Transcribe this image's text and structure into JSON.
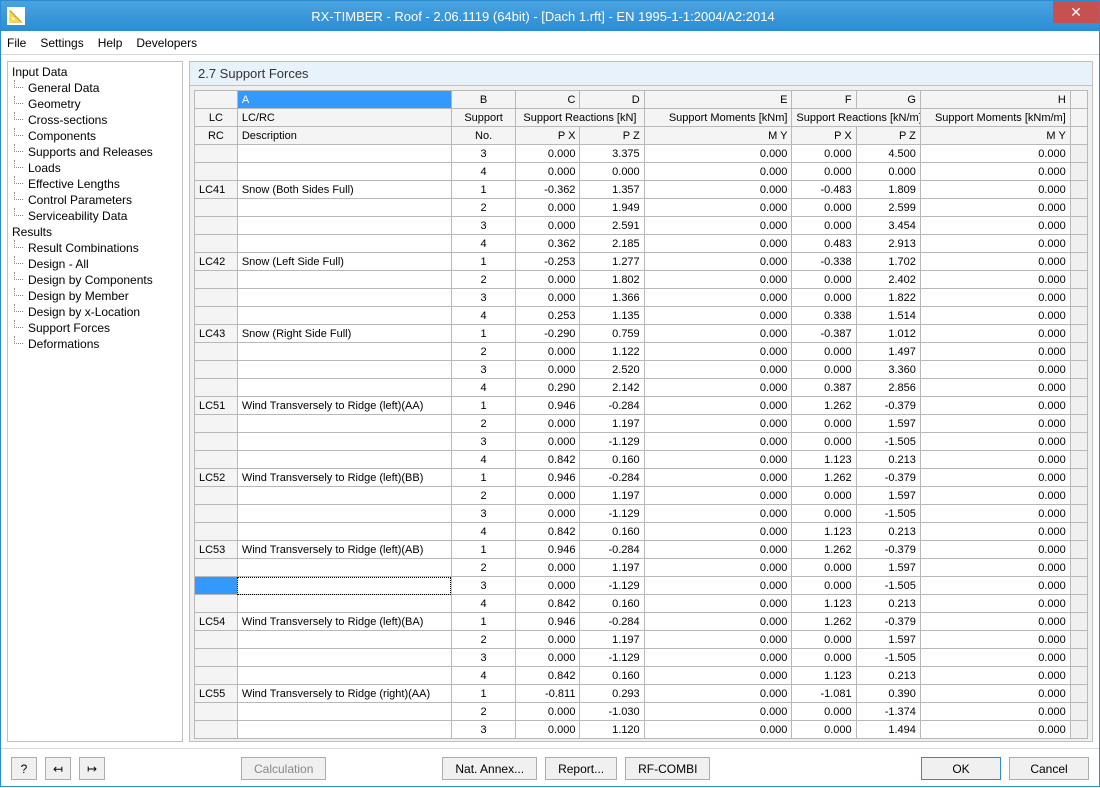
{
  "window": {
    "title": "RX-TIMBER - Roof - 2.06.1119 (64bit) - [Dach 1.rft] - EN 1995-1-1:2004/A2:2014",
    "close_glyph": "✕"
  },
  "menu": [
    "File",
    "Settings",
    "Help",
    "Developers"
  ],
  "sidebar": {
    "groups": [
      {
        "label": "Input Data",
        "items": [
          "General Data",
          "Geometry",
          "Cross-sections",
          "Components",
          "Supports and Releases",
          "Loads",
          "Effective Lengths",
          "Control Parameters",
          "Serviceability Data"
        ]
      },
      {
        "label": "Results",
        "items": [
          "Result Combinations",
          "Design - All",
          "Design by Components",
          "Design by Member",
          "Design by x-Location",
          "Support Forces",
          "Deformations"
        ]
      }
    ]
  },
  "section_title": "2.7 Support Forces",
  "table": {
    "col_letters": [
      "A",
      "B",
      "C",
      "D",
      "E",
      "F",
      "G",
      "H"
    ],
    "header1": {
      "lc": "LC",
      "a": "LC/RC",
      "b": "Support",
      "cd": "Support Reactions [kN]",
      "e": "Support Moments [kNm]",
      "fg": "Support Reactions [kN/m]",
      "h": "Support Moments [kNm/m]"
    },
    "header2": {
      "lc": "RC",
      "a": "Description",
      "b": "No.",
      "c": "P X",
      "d": "P Z",
      "e": "M Y",
      "f": "P X",
      "g": "P Z",
      "h": "M Y"
    },
    "rows": [
      {
        "lc": "",
        "desc": "",
        "supp": "3",
        "px": "0.000",
        "pz": "3.375",
        "my": "0.000",
        "pxm": "0.000",
        "pzm": "4.500",
        "mym": "0.000"
      },
      {
        "lc": "",
        "desc": "",
        "supp": "4",
        "px": "0.000",
        "pz": "0.000",
        "my": "0.000",
        "pxm": "0.000",
        "pzm": "0.000",
        "mym": "0.000"
      },
      {
        "lc": "LC41",
        "desc": "Snow (Both Sides Full)",
        "supp": "1",
        "px": "-0.362",
        "pz": "1.357",
        "my": "0.000",
        "pxm": "-0.483",
        "pzm": "1.809",
        "mym": "0.000"
      },
      {
        "lc": "",
        "desc": "",
        "supp": "2",
        "px": "0.000",
        "pz": "1.949",
        "my": "0.000",
        "pxm": "0.000",
        "pzm": "2.599",
        "mym": "0.000"
      },
      {
        "lc": "",
        "desc": "",
        "supp": "3",
        "px": "0.000",
        "pz": "2.591",
        "my": "0.000",
        "pxm": "0.000",
        "pzm": "3.454",
        "mym": "0.000"
      },
      {
        "lc": "",
        "desc": "",
        "supp": "4",
        "px": "0.362",
        "pz": "2.185",
        "my": "0.000",
        "pxm": "0.483",
        "pzm": "2.913",
        "mym": "0.000"
      },
      {
        "lc": "LC42",
        "desc": "Snow (Left Side Full)",
        "supp": "1",
        "px": "-0.253",
        "pz": "1.277",
        "my": "0.000",
        "pxm": "-0.338",
        "pzm": "1.702",
        "mym": "0.000"
      },
      {
        "lc": "",
        "desc": "",
        "supp": "2",
        "px": "0.000",
        "pz": "1.802",
        "my": "0.000",
        "pxm": "0.000",
        "pzm": "2.402",
        "mym": "0.000"
      },
      {
        "lc": "",
        "desc": "",
        "supp": "3",
        "px": "0.000",
        "pz": "1.366",
        "my": "0.000",
        "pxm": "0.000",
        "pzm": "1.822",
        "mym": "0.000"
      },
      {
        "lc": "",
        "desc": "",
        "supp": "4",
        "px": "0.253",
        "pz": "1.135",
        "my": "0.000",
        "pxm": "0.338",
        "pzm": "1.514",
        "mym": "0.000"
      },
      {
        "lc": "LC43",
        "desc": "Snow (Right Side Full)",
        "supp": "1",
        "px": "-0.290",
        "pz": "0.759",
        "my": "0.000",
        "pxm": "-0.387",
        "pzm": "1.012",
        "mym": "0.000"
      },
      {
        "lc": "",
        "desc": "",
        "supp": "2",
        "px": "0.000",
        "pz": "1.122",
        "my": "0.000",
        "pxm": "0.000",
        "pzm": "1.497",
        "mym": "0.000"
      },
      {
        "lc": "",
        "desc": "",
        "supp": "3",
        "px": "0.000",
        "pz": "2.520",
        "my": "0.000",
        "pxm": "0.000",
        "pzm": "3.360",
        "mym": "0.000"
      },
      {
        "lc": "",
        "desc": "",
        "supp": "4",
        "px": "0.290",
        "pz": "2.142",
        "my": "0.000",
        "pxm": "0.387",
        "pzm": "2.856",
        "mym": "0.000"
      },
      {
        "lc": "LC51",
        "desc": "Wind Transversely to Ridge (left)(AA)",
        "supp": "1",
        "px": "0.946",
        "pz": "-0.284",
        "my": "0.000",
        "pxm": "1.262",
        "pzm": "-0.379",
        "mym": "0.000"
      },
      {
        "lc": "",
        "desc": "",
        "supp": "2",
        "px": "0.000",
        "pz": "1.197",
        "my": "0.000",
        "pxm": "0.000",
        "pzm": "1.597",
        "mym": "0.000"
      },
      {
        "lc": "",
        "desc": "",
        "supp": "3",
        "px": "0.000",
        "pz": "-1.129",
        "my": "0.000",
        "pxm": "0.000",
        "pzm": "-1.505",
        "mym": "0.000"
      },
      {
        "lc": "",
        "desc": "",
        "supp": "4",
        "px": "0.842",
        "pz": "0.160",
        "my": "0.000",
        "pxm": "1.123",
        "pzm": "0.213",
        "mym": "0.000"
      },
      {
        "lc": "LC52",
        "desc": "Wind Transversely to Ridge (left)(BB)",
        "supp": "1",
        "px": "0.946",
        "pz": "-0.284",
        "my": "0.000",
        "pxm": "1.262",
        "pzm": "-0.379",
        "mym": "0.000"
      },
      {
        "lc": "",
        "desc": "",
        "supp": "2",
        "px": "0.000",
        "pz": "1.197",
        "my": "0.000",
        "pxm": "0.000",
        "pzm": "1.597",
        "mym": "0.000"
      },
      {
        "lc": "",
        "desc": "",
        "supp": "3",
        "px": "0.000",
        "pz": "-1.129",
        "my": "0.000",
        "pxm": "0.000",
        "pzm": "-1.505",
        "mym": "0.000"
      },
      {
        "lc": "",
        "desc": "",
        "supp": "4",
        "px": "0.842",
        "pz": "0.160",
        "my": "0.000",
        "pxm": "1.123",
        "pzm": "0.213",
        "mym": "0.000"
      },
      {
        "lc": "LC53",
        "desc": "Wind Transversely to Ridge (left)(AB)",
        "supp": "1",
        "px": "0.946",
        "pz": "-0.284",
        "my": "0.000",
        "pxm": "1.262",
        "pzm": "-0.379",
        "mym": "0.000"
      },
      {
        "lc": "",
        "desc": "",
        "supp": "2",
        "px": "0.000",
        "pz": "1.197",
        "my": "0.000",
        "pxm": "0.000",
        "pzm": "1.597",
        "mym": "0.000"
      },
      {
        "lc": "",
        "desc": "",
        "supp": "3",
        "px": "0.000",
        "pz": "-1.129",
        "my": "0.000",
        "pxm": "0.000",
        "pzm": "-1.505",
        "mym": "0.000",
        "sel": true
      },
      {
        "lc": "",
        "desc": "",
        "supp": "4",
        "px": "0.842",
        "pz": "0.160",
        "my": "0.000",
        "pxm": "1.123",
        "pzm": "0.213",
        "mym": "0.000"
      },
      {
        "lc": "LC54",
        "desc": "Wind Transversely to Ridge (left)(BA)",
        "supp": "1",
        "px": "0.946",
        "pz": "-0.284",
        "my": "0.000",
        "pxm": "1.262",
        "pzm": "-0.379",
        "mym": "0.000"
      },
      {
        "lc": "",
        "desc": "",
        "supp": "2",
        "px": "0.000",
        "pz": "1.197",
        "my": "0.000",
        "pxm": "0.000",
        "pzm": "1.597",
        "mym": "0.000"
      },
      {
        "lc": "",
        "desc": "",
        "supp": "3",
        "px": "0.000",
        "pz": "-1.129",
        "my": "0.000",
        "pxm": "0.000",
        "pzm": "-1.505",
        "mym": "0.000"
      },
      {
        "lc": "",
        "desc": "",
        "supp": "4",
        "px": "0.842",
        "pz": "0.160",
        "my": "0.000",
        "pxm": "1.123",
        "pzm": "0.213",
        "mym": "0.000"
      },
      {
        "lc": "LC55",
        "desc": "Wind Transversely to Ridge (right)(AA)",
        "supp": "1",
        "px": "-0.811",
        "pz": "0.293",
        "my": "0.000",
        "pxm": "-1.081",
        "pzm": "0.390",
        "mym": "0.000"
      },
      {
        "lc": "",
        "desc": "",
        "supp": "2",
        "px": "0.000",
        "pz": "-1.030",
        "my": "0.000",
        "pxm": "0.000",
        "pzm": "-1.374",
        "mym": "0.000"
      },
      {
        "lc": "",
        "desc": "",
        "supp": "3",
        "px": "0.000",
        "pz": "1.120",
        "my": "0.000",
        "pxm": "0.000",
        "pzm": "1.494",
        "mym": "0.000"
      }
    ]
  },
  "buttons": {
    "calculation": "Calculation",
    "nat_annex": "Nat. Annex...",
    "report": "Report...",
    "rf_combi": "RF-COMBI",
    "ok": "OK",
    "cancel": "Cancel",
    "help_glyph": "?"
  }
}
